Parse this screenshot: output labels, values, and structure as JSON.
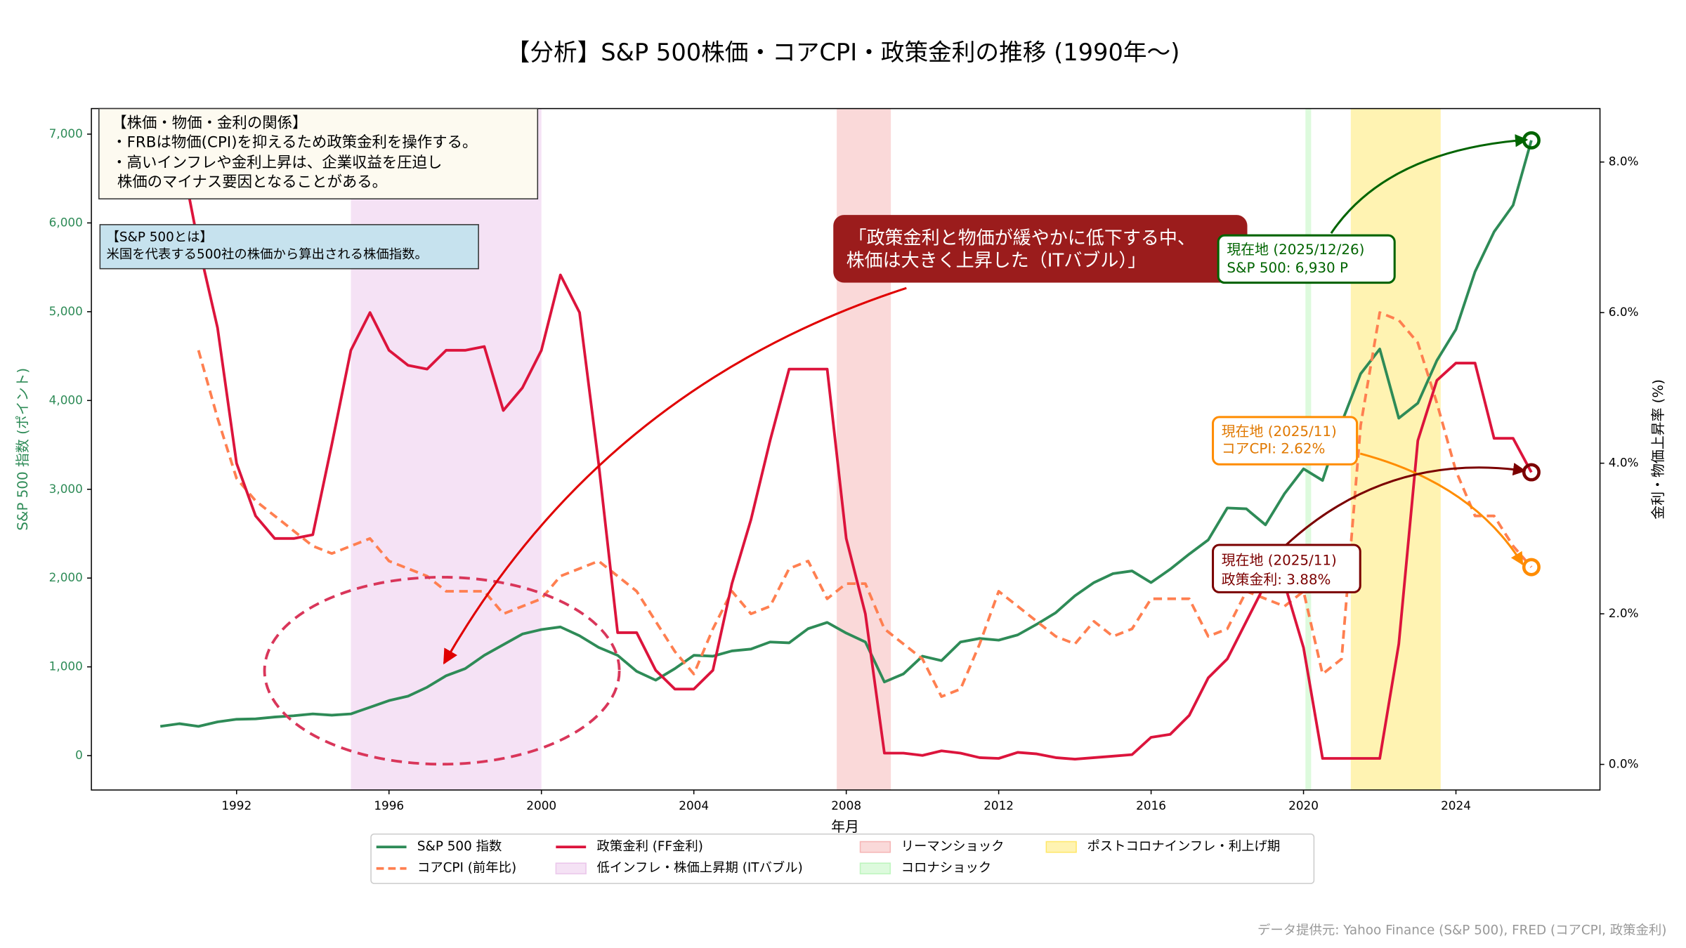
{
  "chart_data": {
    "type": "line",
    "title": "【分析】S&P 500株価・コアCPI・政策金利の推移 (1990年〜)",
    "xlabel": "年月",
    "ylabel": "S&P 500 指数 (ポイント)",
    "y2label": "金利・物価上昇率 (%)",
    "source": "データ提供元: Yahoo Finance (S&P 500), FRED (コアCPI, 政策金利)",
    "xlim": [
      1988.19,
      2027.78
    ],
    "xticks": [
      1992,
      1996,
      2000,
      2004,
      2008,
      2012,
      2016,
      2020,
      2024
    ],
    "ylim": [
      -387,
      7288
    ],
    "yticks": [
      0,
      {
        "value": 1000,
        "label": "1,000"
      },
      {
        "value": 2000,
        "label": "2,000"
      },
      {
        "value": 3000,
        "label": "3,000"
      },
      {
        "value": 4000,
        "label": "4,000"
      },
      {
        "value": 5000,
        "label": "5,000"
      },
      {
        "value": 6000,
        "label": "6,000"
      },
      {
        "value": 7000,
        "label": "7,000"
      }
    ],
    "y2lim": [
      -0.34,
      8.71
    ],
    "y2ticks": [
      {
        "value": 0,
        "label": "0.0%"
      },
      {
        "value": 2,
        "label": "2.0%"
      },
      {
        "value": 4,
        "label": "4.0%"
      },
      {
        "value": 6,
        "label": "6.0%"
      },
      {
        "value": 8,
        "label": "8.0%"
      }
    ],
    "x": [
      1990,
      1990.5,
      1991,
      1991.5,
      1992,
      1992.5,
      1993,
      1993.5,
      1994,
      1994.5,
      1995,
      1995.5,
      1996,
      1996.5,
      1997,
      1997.5,
      1998,
      1998.5,
      1999,
      1999.5,
      2000,
      2000.5,
      2001,
      2001.5,
      2002,
      2002.5,
      2003,
      2003.5,
      2004,
      2004.5,
      2005,
      2005.5,
      2006,
      2006.5,
      2007,
      2007.5,
      2008,
      2008.5,
      2009,
      2009.5,
      2010,
      2010.5,
      2011,
      2011.5,
      2012,
      2012.5,
      2013,
      2013.5,
      2014,
      2014.5,
      2015,
      2015.5,
      2016,
      2016.5,
      2017,
      2017.5,
      2018,
      2018.5,
      2019,
      2019.5,
      2020,
      2020.5,
      2021,
      2021.5,
      2022,
      2022.5,
      2023,
      2023.5,
      2024,
      2024.5,
      2025,
      2025.5,
      2025.98
    ],
    "series": [
      {
        "name": "S&P 500 指数",
        "color": "#2e8b57",
        "axis": "y",
        "line_style": "solid",
        "values": [
          330,
          360,
          330,
          380,
          410,
          415,
          435,
          450,
          470,
          455,
          470,
          545,
          620,
          670,
          770,
          900,
          980,
          1130,
          1250,
          1370,
          1420,
          1450,
          1350,
          1220,
          1130,
          950,
          850,
          980,
          1130,
          1120,
          1180,
          1200,
          1280,
          1270,
          1430,
          1500,
          1380,
          1280,
          830,
          920,
          1120,
          1070,
          1280,
          1320,
          1300,
          1360,
          1480,
          1610,
          1800,
          1950,
          2050,
          2080,
          1950,
          2100,
          2270,
          2430,
          2790,
          2780,
          2600,
          2950,
          3230,
          3100,
          3750,
          4300,
          4580,
          3800,
          3970,
          4450,
          4800,
          5450,
          5900,
          6200,
          6930
        ]
      },
      {
        "name": "コアCPI (前年比)",
        "color": "#ff7f50",
        "axis": "y2",
        "line_style": "dashed",
        "values": [
          null,
          null,
          5.5,
          4.6,
          3.8,
          3.5,
          3.3,
          3.1,
          2.9,
          2.8,
          2.9,
          3.0,
          2.7,
          2.6,
          2.5,
          2.3,
          2.3,
          2.3,
          2.0,
          2.1,
          2.2,
          2.5,
          2.6,
          2.7,
          2.5,
          2.3,
          1.9,
          1.5,
          1.2,
          1.8,
          2.3,
          2.0,
          2.1,
          2.6,
          2.7,
          2.2,
          2.4,
          2.4,
          1.8,
          1.6,
          1.4,
          0.9,
          1.0,
          1.6,
          2.3,
          2.1,
          1.9,
          1.7,
          1.6,
          1.9,
          1.7,
          1.8,
          2.2,
          2.2,
          2.2,
          1.7,
          1.8,
          2.3,
          2.2,
          2.1,
          2.3,
          1.2,
          1.4,
          4.5,
          6.0,
          5.9,
          5.6,
          4.8,
          3.9,
          3.3,
          3.3,
          2.9,
          2.62
        ]
      },
      {
        "name": "政策金利 (FF金利)",
        "color": "#dc143c",
        "axis": "y2",
        "line_style": "solid",
        "values": [
          8.25,
          8.2,
          6.9,
          5.8,
          4.0,
          3.3,
          3.0,
          3.0,
          3.05,
          4.25,
          5.5,
          6.0,
          5.5,
          5.3,
          5.25,
          5.5,
          5.5,
          5.55,
          4.7,
          5.0,
          5.5,
          6.5,
          6.0,
          4.0,
          1.75,
          1.75,
          1.25,
          1.0,
          1.0,
          1.25,
          2.4,
          3.25,
          4.3,
          5.25,
          5.25,
          5.25,
          3.0,
          2.0,
          0.15,
          0.15,
          0.12,
          0.18,
          0.15,
          0.09,
          0.08,
          0.16,
          0.14,
          0.09,
          0.07,
          0.09,
          0.11,
          0.13,
          0.36,
          0.4,
          0.65,
          1.15,
          1.4,
          1.9,
          2.4,
          2.4,
          1.55,
          0.08,
          0.08,
          0.08,
          0.08,
          1.6,
          4.3,
          5.1,
          5.33,
          5.33,
          4.33,
          4.33,
          3.88
        ]
      }
    ],
    "spans": [
      {
        "name": "低インフレ・株価上昇期 (ITバブル)",
        "start": 1995.0,
        "end": 2000.0,
        "color": "#dda0dd"
      },
      {
        "name": "リーマンショック",
        "start": 2007.75,
        "end": 2009.17,
        "color": "#f08080"
      },
      {
        "name": "コロナショック",
        "start": 2020.05,
        "end": 2020.2,
        "color": "#90ee90"
      },
      {
        "name": "ポストコロナインフレ・利上げ期",
        "start": 2021.24,
        "end": 2023.6,
        "color": "#ffd700"
      }
    ],
    "annotations": {
      "relationship_box": [
        "【株価・物価・金利の関係】",
        "・FRBは物価(CPI)を抑えるため政策金利を操作する。",
        "・高いインフレや金利上昇は、企業収益を圧迫し",
        "株価のマイナス要因となることがある。"
      ],
      "sp500_box": [
        "【S&P 500とは】",
        "米国を代表する500社の株価から算出される株価指数。"
      ],
      "callout": [
        "「政策金利と物価が緩やかに低下する中、",
        "株価は大きく上昇した（ITバブル）」"
      ],
      "sp500_now": [
        "現在地 (2025/12/26)",
        "S&P 500: 6,930 P"
      ],
      "cpi_now": [
        "現在地 (2025/11)",
        "コアCPI: 2.62%"
      ],
      "ff_now": [
        "現在地 (2025/11)",
        "政策金利: 3.88%"
      ]
    }
  }
}
